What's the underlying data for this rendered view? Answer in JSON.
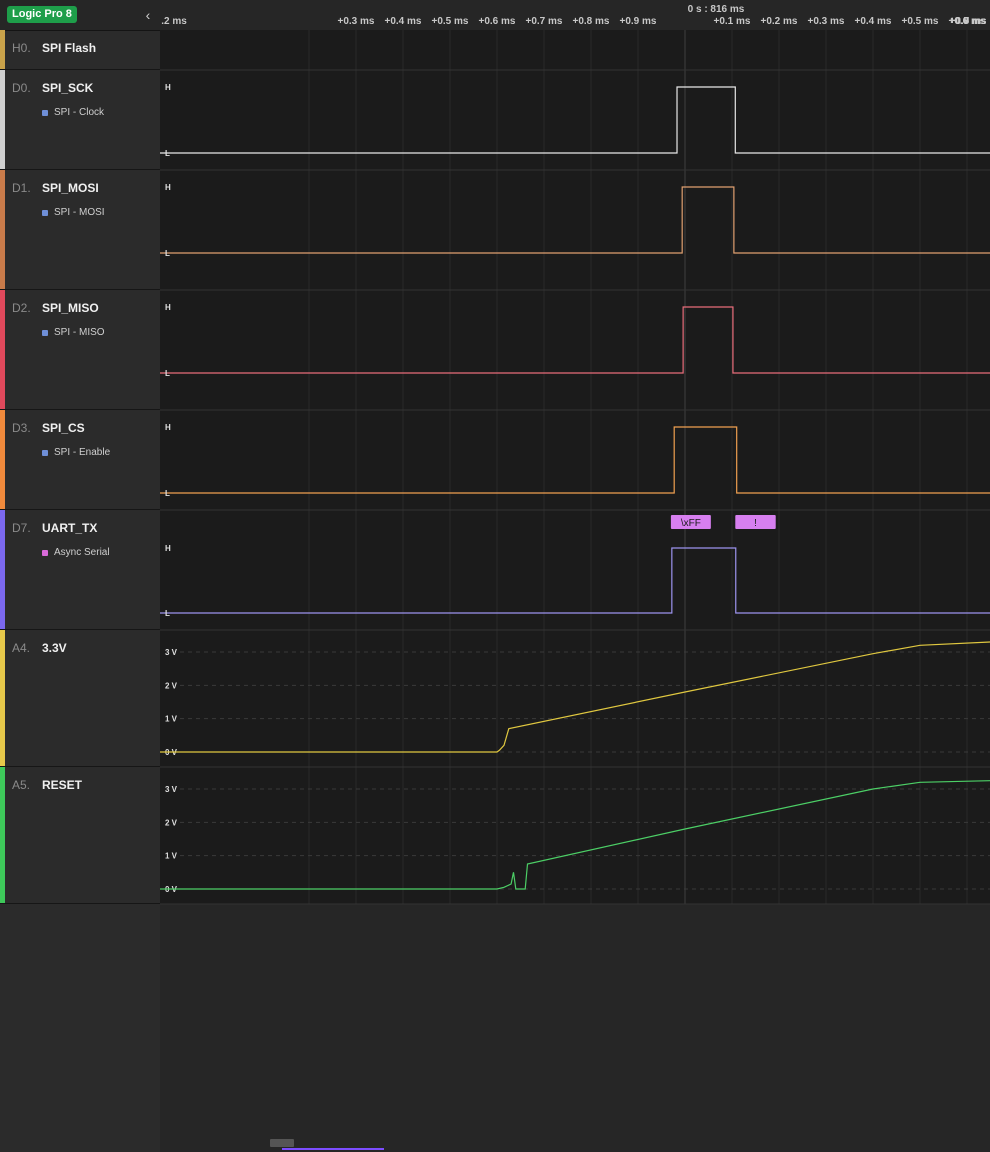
{
  "app": {
    "device_badge": "Logic Pro 8",
    "collapse_icon": "chevron-left-icon",
    "collapse_glyph": "‹"
  },
  "timeline": {
    "cursor_label": "0 s : 816 ms",
    "left_labels": [
      ".2 ms",
      "+0.3 ms",
      "+0.4 ms",
      "+0.5 ms",
      "+0.6 ms",
      "+0.7 ms",
      "+0.8 ms",
      "+0.9 ms"
    ],
    "right_labels": [
      "+0.1 ms",
      "+0.2 ms",
      "+0.3 ms",
      "+0.4 ms",
      "+0.5 ms",
      "+0.6 ms",
      "+0.7 ms",
      "+0.8 ms",
      "+0.9 ms"
    ]
  },
  "channels": [
    {
      "id": "H0.",
      "name": "SPI Flash",
      "color": "#c9a24a"
    },
    {
      "id": "D0.",
      "name": "SPI_SCK",
      "color": "#d0d0d0",
      "analyzer": "SPI - Clock",
      "analyzer_color": "#6f8fd8"
    },
    {
      "id": "D1.",
      "name": "SPI_MOSI",
      "color": "#c97b4a",
      "analyzer": "SPI - MOSI",
      "analyzer_color": "#6f8fd8"
    },
    {
      "id": "D2.",
      "name": "SPI_MISO",
      "color": "#e0495c",
      "analyzer": "SPI - MISO",
      "analyzer_color": "#6f8fd8"
    },
    {
      "id": "D3.",
      "name": "SPI_CS",
      "color": "#f08a3c",
      "analyzer": "SPI - Enable",
      "analyzer_color": "#6f8fd8"
    },
    {
      "id": "D7.",
      "name": "UART_TX",
      "color": "#7b68ee",
      "analyzer": "Async Serial",
      "analyzer_color": "#d96ad9"
    },
    {
      "id": "A4.",
      "name": "3.3V",
      "color": "#e6c84a"
    },
    {
      "id": "A5.",
      "name": "RESET",
      "color": "#3ec95a"
    }
  ],
  "digital_traces": [
    {
      "channel": "SPI_SCK",
      "color": "#e8e8e8",
      "high_label": "H",
      "low_label": "L",
      "pulse_start_ms": -0.017,
      "pulse_end_ms": 0.107
    },
    {
      "channel": "SPI_MOSI",
      "color": "#e0a070",
      "high_label": "H",
      "low_label": "L",
      "pulse_start_ms": -0.006,
      "pulse_end_ms": 0.104
    },
    {
      "channel": "SPI_MISO",
      "color": "#e86c7a",
      "high_label": "H",
      "low_label": "L",
      "pulse_start_ms": -0.004,
      "pulse_end_ms": 0.102
    },
    {
      "channel": "SPI_CS",
      "color": "#f0a050",
      "high_label": "H",
      "low_label": "L",
      "pulse_start_ms": -0.023,
      "pulse_end_ms": 0.11
    },
    {
      "channel": "UART_TX",
      "color": "#9c93ee",
      "high_label": "H",
      "low_label": "L",
      "pulse_start_ms": -0.028,
      "pulse_end_ms": 0.108
    }
  ],
  "uart_decode": {
    "color": "#d77ff0",
    "frames": [
      {
        "text": "\\xFF",
        "start_ms": -0.03,
        "end_ms": 0.055
      },
      {
        "text": "!",
        "start_ms": 0.107,
        "end_ms": 0.193
      }
    ]
  },
  "analog_traces": [
    {
      "channel": "3.3V",
      "color": "#e0c840",
      "unit": "V",
      "tick_labels": [
        "3 V",
        "2 V",
        "1 V",
        "0 V"
      ],
      "ticks": [
        3,
        2,
        1,
        0
      ],
      "points": [
        [
          -1.21,
          0.0
        ],
        [
          -0.4,
          0.0
        ],
        [
          -0.395,
          0.05
        ],
        [
          -0.385,
          0.2
        ],
        [
          -0.375,
          0.7
        ],
        [
          0.0,
          1.8
        ],
        [
          0.4,
          2.95
        ],
        [
          0.5,
          3.2
        ],
        [
          1.0,
          3.3
        ],
        [
          1.0,
          3.3
        ]
      ]
    },
    {
      "channel": "RESET",
      "color": "#4ccf66",
      "unit": "V",
      "tick_labels": [
        "3 V",
        "2 V",
        "1 V",
        "0 V"
      ],
      "ticks": [
        3,
        2,
        1,
        0
      ],
      "points": [
        [
          -1.21,
          0.0
        ],
        [
          -0.4,
          0.0
        ],
        [
          -0.385,
          0.05
        ],
        [
          -0.37,
          0.15
        ],
        [
          -0.365,
          0.5
        ],
        [
          -0.36,
          0.0
        ],
        [
          -0.34,
          0.0
        ],
        [
          -0.335,
          0.75
        ],
        [
          0.0,
          1.8
        ],
        [
          0.4,
          3.0
        ],
        [
          0.5,
          3.2
        ],
        [
          1.0,
          3.25
        ]
      ]
    }
  ]
}
